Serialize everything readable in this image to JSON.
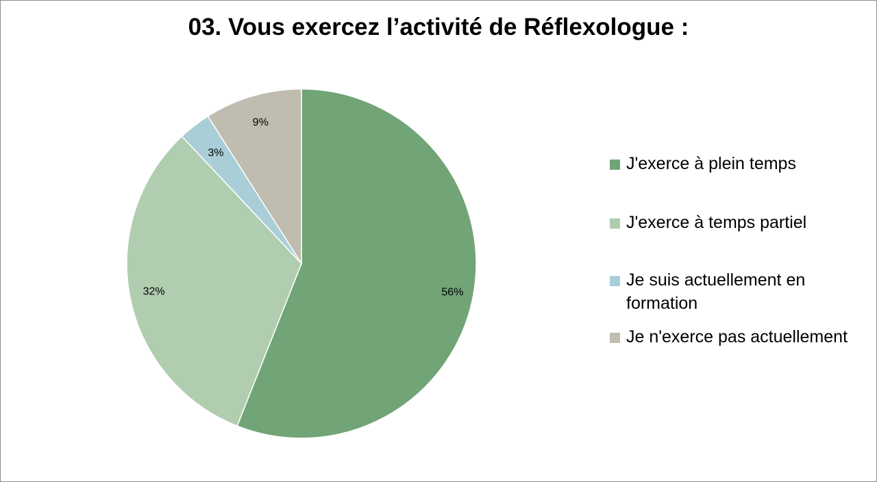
{
  "chart_data": {
    "type": "pie",
    "title": "03. Vous exercez l’activité de Réflexologue :",
    "categories": [
      "J'exerce à plein temps",
      "J'exerce à temps partiel",
      "Je suis actuellement en formation",
      "Je n'exerce pas actuellement"
    ],
    "values": [
      56,
      32,
      3,
      9
    ],
    "data_labels": [
      "56%",
      "32%",
      "3%",
      "9%"
    ],
    "colors": [
      "#71a476",
      "#b0cdb0",
      "#a9ced8",
      "#c0bdb0"
    ],
    "legend_placement": "right",
    "start_angle": "12 o'clock",
    "direction": "clockwise"
  }
}
